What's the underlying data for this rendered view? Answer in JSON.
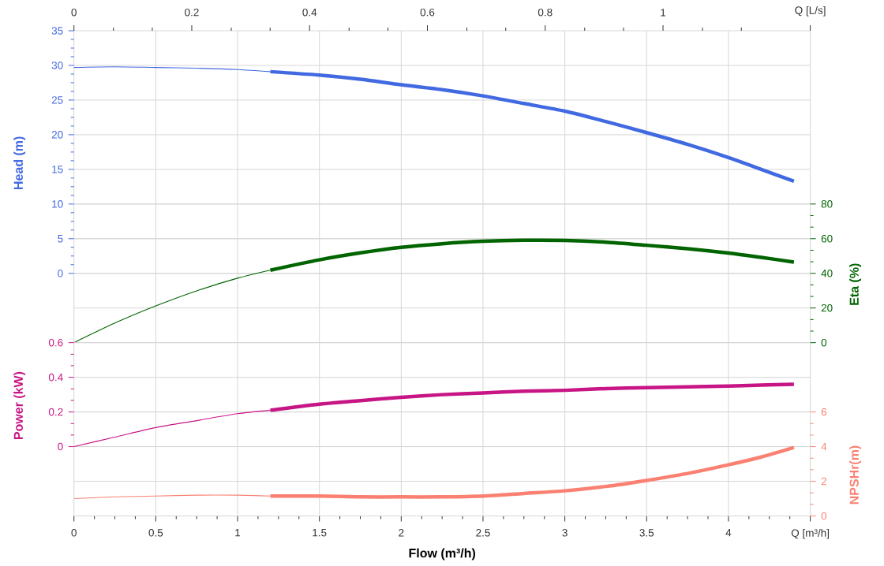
{
  "chart_data": [
    {
      "type": "line",
      "xlabel": "Flow (m³/h)",
      "xlim": [
        0,
        4.5
      ],
      "xticks": [
        0,
        {
          "value": 0.125,
          "label": null
        },
        {
          "value": 0.25,
          "label": null
        },
        {
          "value": 0.375,
          "label": null
        },
        0.5,
        {
          "value": 0.625,
          "label": null
        },
        {
          "value": 0.75,
          "label": null
        },
        {
          "value": 0.875,
          "label": null
        },
        1,
        {
          "value": 1.125,
          "label": null
        },
        {
          "value": 1.25,
          "label": null
        },
        {
          "value": 1.375,
          "label": null
        },
        1.5,
        {
          "value": 1.625,
          "label": null
        },
        {
          "value": 1.75,
          "label": null
        },
        {
          "value": 1.875,
          "label": null
        },
        2,
        {
          "value": 2.125,
          "label": null
        },
        {
          "value": 2.25,
          "label": null
        },
        {
          "value": 2.375,
          "label": null
        },
        2.5,
        {
          "value": 2.625,
          "label": null
        },
        {
          "value": 2.75,
          "label": null
        },
        {
          "value": 2.875,
          "label": null
        },
        3,
        {
          "value": 3.125,
          "label": null
        },
        {
          "value": 3.25,
          "label": null
        },
        {
          "value": 3.375,
          "label": null
        },
        3.5,
        {
          "value": 3.625,
          "label": null
        },
        {
          "value": 3.75,
          "label": null
        },
        {
          "value": 3.875,
          "label": null
        },
        4,
        {
          "value": 4.125,
          "label": null
        },
        {
          "value": 4.25,
          "label": null
        },
        {
          "value": 4.375,
          "label": null
        },
        {
          "value": 4.5,
          "label": "Q [m³/h]"
        }
      ],
      "x2lim": [
        0,
        1.25
      ],
      "x2ticks": [
        0,
        {
          "value": 0.067,
          "label": null
        },
        {
          "value": 0.133,
          "label": null
        },
        0.2,
        {
          "value": 0.267,
          "label": null
        },
        {
          "value": 0.333,
          "label": null
        },
        0.4,
        {
          "value": 0.467,
          "label": null
        },
        {
          "value": 0.533,
          "label": null
        },
        0.6,
        {
          "value": 0.667,
          "label": null
        },
        {
          "value": 0.733,
          "label": null
        },
        0.8,
        {
          "value": 0.867,
          "label": null
        },
        {
          "value": 0.933,
          "label": null
        },
        1,
        {
          "value": 1.067,
          "label": null
        },
        {
          "value": 1.133,
          "label": null
        },
        {
          "value": 1.25,
          "label": "Q [L/s]"
        }
      ],
      "ylabel": "Head (m)",
      "ylim": [
        -35,
        35
      ],
      "yticks": [
        0,
        {
          "value": 1.25,
          "label": null
        },
        {
          "value": 2.5,
          "label": null
        },
        {
          "value": 3.75,
          "label": null
        },
        5,
        {
          "value": 6.25,
          "label": null
        },
        {
          "value": 7.5,
          "label": null
        },
        {
          "value": 8.75,
          "label": null
        },
        10,
        {
          "value": 11.25,
          "label": null
        },
        {
          "value": 12.5,
          "label": null
        },
        {
          "value": 13.75,
          "label": null
        },
        15,
        {
          "value": 16.25,
          "label": null
        },
        {
          "value": 17.5,
          "label": null
        },
        {
          "value": 18.75,
          "label": null
        },
        20,
        {
          "value": 21.25,
          "label": null
        },
        {
          "value": 22.5,
          "label": null
        },
        {
          "value": 23.75,
          "label": null
        },
        25,
        {
          "value": 26.25,
          "label": null
        },
        {
          "value": 27.5,
          "label": null
        },
        {
          "value": 28.75,
          "label": null
        },
        30,
        {
          "value": 31.25,
          "label": null
        },
        {
          "value": 32.5,
          "label": null
        },
        {
          "value": 33.75,
          "label": null
        },
        35
      ],
      "y2label": "Eta (%)",
      "y2lim": [
        -100,
        180
      ],
      "y2ticks": [
        0,
        {
          "value": 6.67,
          "label": null
        },
        {
          "value": 13.33,
          "label": null
        },
        20,
        {
          "value": 26.67,
          "label": null
        },
        {
          "value": 33.33,
          "label": null
        },
        40,
        {
          "value": 46.67,
          "label": null
        },
        {
          "value": 53.33,
          "label": null
        },
        60,
        {
          "value": 66.67,
          "label": null
        },
        {
          "value": 73.33,
          "label": null
        },
        80
      ],
      "grid": true,
      "series": [
        {
          "color": "#4169e1",
          "axis": "y",
          "x": [
            0,
            0.25,
            0.5,
            0.75,
            1,
            1.2
          ],
          "values": [
            29.7,
            29.8,
            29.7,
            29.6,
            29.4,
            29.1
          ]
        },
        {
          "color": "#4169e1",
          "axis": "y",
          "x": [
            1.2,
            1.5,
            1.75,
            2,
            2.25,
            2.5,
            2.75,
            3,
            3.25,
            3.5,
            3.75,
            4,
            4.2,
            4.4
          ],
          "values": [
            29.1,
            28.6,
            28,
            27.2,
            26.5,
            25.6,
            24.5,
            23.4,
            21.9,
            20.3,
            18.6,
            16.7,
            15,
            13.3
          ]
        },
        {
          "color": "#006400",
          "axis": "y2",
          "x": [
            0,
            0.25,
            0.5,
            0.75,
            1,
            1.2
          ],
          "values": [
            0,
            11.3,
            21.2,
            29.9,
            37.2,
            41.8
          ]
        },
        {
          "color": "#006400",
          "axis": "y2",
          "x": [
            1.2,
            1.5,
            1.75,
            2,
            2.25,
            2.5,
            2.75,
            3,
            3.25,
            3.5,
            3.75,
            4,
            4.2,
            4.4
          ],
          "values": [
            41.8,
            47.8,
            51.8,
            55,
            57.1,
            58.5,
            59.1,
            59,
            58,
            56.2,
            54.2,
            51.7,
            49.2,
            46.5
          ]
        }
      ]
    },
    {
      "type": "line",
      "xlim": [
        0,
        4.5
      ],
      "tick_labels": "y",
      "ylabel": "Power (kW)",
      "ylim": [
        -0.4,
        2.4
      ],
      "yticks": [
        0,
        {
          "value": 0.067,
          "label": null
        },
        {
          "value": 0.133,
          "label": null
        },
        0.2,
        {
          "value": 0.267,
          "label": null
        },
        {
          "value": 0.333,
          "label": null
        },
        0.4,
        {
          "value": 0.467,
          "label": null
        },
        {
          "value": 0.533,
          "label": null
        },
        0.6
      ],
      "y2label": "NPSHr(m)",
      "y2lim": [
        0,
        28
      ],
      "y2ticks": [
        0,
        {
          "value": 0.667,
          "label": null
        },
        {
          "value": 1.333,
          "label": null
        },
        2,
        {
          "value": 2.667,
          "label": null
        },
        {
          "value": 3.333,
          "label": null
        },
        4,
        {
          "value": 4.667,
          "label": null
        },
        {
          "value": 5.333,
          "label": null
        },
        6
      ],
      "grid": "y",
      "series": [
        {
          "color": "#c71585",
          "axis": "y",
          "x": [
            0,
            0.25,
            0.5,
            0.75,
            1,
            1.2
          ],
          "values": [
            0,
            0.055,
            0.11,
            0.15,
            0.19,
            0.21
          ]
        },
        {
          "color": "#c71585",
          "axis": "y",
          "x": [
            1.2,
            1.5,
            1.75,
            2,
            2.25,
            2.5,
            2.75,
            3,
            3.25,
            3.5,
            3.75,
            4,
            4.2,
            4.4
          ],
          "values": [
            0.21,
            0.245,
            0.265,
            0.285,
            0.3,
            0.31,
            0.32,
            0.325,
            0.335,
            0.34,
            0.345,
            0.35,
            0.355,
            0.36
          ]
        },
        {
          "color": "#fa8072",
          "axis": "y2",
          "x": [
            0,
            0.25,
            0.5,
            0.75,
            1,
            1.2
          ],
          "values": [
            1,
            1.1,
            1.15,
            1.2,
            1.2,
            1.15
          ]
        },
        {
          "color": "#fa8072",
          "axis": "y2",
          "x": [
            1.2,
            1.5,
            1.75,
            2,
            2.25,
            2.5,
            2.75,
            3,
            3.25,
            3.5,
            3.75,
            4,
            4.2,
            4.4
          ],
          "values": [
            1.15,
            1.15,
            1.1,
            1.1,
            1.1,
            1.15,
            1.3,
            1.45,
            1.7,
            2.05,
            2.45,
            2.95,
            3.4,
            3.95
          ]
        }
      ]
    }
  ]
}
